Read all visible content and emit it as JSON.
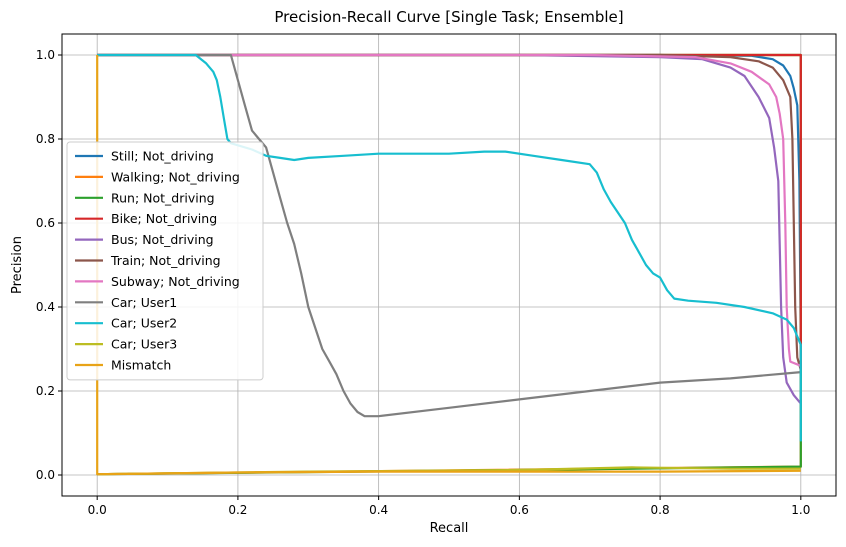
{
  "chart_data": {
    "type": "line",
    "title": "Precision-Recall Curve [Single Task; Ensemble]",
    "xlabel": "Recall",
    "ylabel": "Precision",
    "xlim": [
      -0.05,
      1.05
    ],
    "ylim": [
      -0.05,
      1.05
    ],
    "xticks": [
      "0.0",
      "0.2",
      "0.4",
      "0.6",
      "0.8",
      "1.0"
    ],
    "yticks": [
      "0.0",
      "0.2",
      "0.4",
      "0.6",
      "0.8",
      "1.0"
    ],
    "grid": true,
    "legend_position": "center-left",
    "series": [
      {
        "name": "Still; Not_driving",
        "color": "#1f77b4",
        "points": [
          [
            0,
            1
          ],
          [
            0.8,
            1
          ],
          [
            0.93,
            0.998
          ],
          [
            0.96,
            0.99
          ],
          [
            0.975,
            0.975
          ],
          [
            0.985,
            0.95
          ],
          [
            0.99,
            0.92
          ],
          [
            0.995,
            0.88
          ],
          [
            0.998,
            0.7
          ],
          [
            1.0,
            0.3
          ],
          [
            1.0,
            0.08
          ]
        ]
      },
      {
        "name": "Walking; Not_driving",
        "color": "#ff7f0e",
        "points": [
          [
            0,
            1
          ],
          [
            0.98,
            1
          ],
          [
            1.0,
            1
          ],
          [
            1.0,
            0.02
          ],
          [
            0,
            0.002
          ]
        ]
      },
      {
        "name": "Run; Not_driving",
        "color": "#2ca02c",
        "points": [
          [
            0,
            1
          ],
          [
            0.99,
            1
          ],
          [
            1.0,
            1
          ],
          [
            1.0,
            0.02
          ],
          [
            0.6,
            0.012
          ],
          [
            0,
            0.002
          ]
        ]
      },
      {
        "name": "Bike; Not_driving",
        "color": "#d62728",
        "points": [
          [
            0,
            1
          ],
          [
            0.995,
            1
          ],
          [
            1.0,
            1
          ],
          [
            1.0,
            0.25
          ]
        ]
      },
      {
        "name": "Bus; Not_driving",
        "color": "#9467bd",
        "points": [
          [
            0,
            1
          ],
          [
            0.6,
            1
          ],
          [
            0.8,
            0.995
          ],
          [
            0.86,
            0.99
          ],
          [
            0.9,
            0.97
          ],
          [
            0.92,
            0.95
          ],
          [
            0.94,
            0.9
          ],
          [
            0.955,
            0.85
          ],
          [
            0.962,
            0.78
          ],
          [
            0.968,
            0.7
          ],
          [
            0.97,
            0.55
          ],
          [
            0.972,
            0.4
          ],
          [
            0.975,
            0.28
          ],
          [
            0.98,
            0.22
          ],
          [
            0.99,
            0.19
          ],
          [
            1.0,
            0.17
          ]
        ]
      },
      {
        "name": "Train; Not_driving",
        "color": "#8c564b",
        "points": [
          [
            0,
            1
          ],
          [
            0.8,
            1
          ],
          [
            0.9,
            0.995
          ],
          [
            0.94,
            0.985
          ],
          [
            0.96,
            0.97
          ],
          [
            0.975,
            0.94
          ],
          [
            0.985,
            0.9
          ],
          [
            0.988,
            0.8
          ],
          [
            0.99,
            0.6
          ],
          [
            0.992,
            0.4
          ],
          [
            0.995,
            0.28
          ],
          [
            1.0,
            0.25
          ]
        ]
      },
      {
        "name": "Subway; Not_driving",
        "color": "#e377c2",
        "points": [
          [
            0,
            1
          ],
          [
            0.7,
            1
          ],
          [
            0.85,
            0.995
          ],
          [
            0.9,
            0.98
          ],
          [
            0.93,
            0.96
          ],
          [
            0.955,
            0.93
          ],
          [
            0.965,
            0.9
          ],
          [
            0.97,
            0.86
          ],
          [
            0.975,
            0.8
          ],
          [
            0.978,
            0.6
          ],
          [
            0.98,
            0.4
          ],
          [
            0.983,
            0.3
          ],
          [
            0.985,
            0.27
          ],
          [
            1.0,
            0.26
          ]
        ]
      },
      {
        "name": "Car; User1",
        "color": "#7f7f7f",
        "points": [
          [
            0,
            1
          ],
          [
            0.19,
            1
          ],
          [
            0.2,
            0.94
          ],
          [
            0.21,
            0.88
          ],
          [
            0.22,
            0.82
          ],
          [
            0.23,
            0.8
          ],
          [
            0.24,
            0.78
          ],
          [
            0.25,
            0.72
          ],
          [
            0.26,
            0.66
          ],
          [
            0.27,
            0.6
          ],
          [
            0.28,
            0.55
          ],
          [
            0.29,
            0.48
          ],
          [
            0.3,
            0.4
          ],
          [
            0.31,
            0.35
          ],
          [
            0.32,
            0.3
          ],
          [
            0.33,
            0.27
          ],
          [
            0.34,
            0.24
          ],
          [
            0.35,
            0.2
          ],
          [
            0.36,
            0.17
          ],
          [
            0.37,
            0.15
          ],
          [
            0.38,
            0.14
          ],
          [
            0.4,
            0.14
          ],
          [
            0.5,
            0.16
          ],
          [
            0.6,
            0.18
          ],
          [
            0.7,
            0.2
          ],
          [
            0.8,
            0.22
          ],
          [
            0.9,
            0.23
          ],
          [
            1.0,
            0.245
          ]
        ]
      },
      {
        "name": "Car; User2",
        "color": "#17becf",
        "points": [
          [
            0,
            1
          ],
          [
            0.14,
            1
          ],
          [
            0.155,
            0.98
          ],
          [
            0.165,
            0.96
          ],
          [
            0.17,
            0.94
          ],
          [
            0.175,
            0.9
          ],
          [
            0.18,
            0.85
          ],
          [
            0.185,
            0.8
          ],
          [
            0.19,
            0.79
          ],
          [
            0.2,
            0.785
          ],
          [
            0.22,
            0.775
          ],
          [
            0.24,
            0.76
          ],
          [
            0.26,
            0.755
          ],
          [
            0.28,
            0.75
          ],
          [
            0.3,
            0.755
          ],
          [
            0.35,
            0.76
          ],
          [
            0.4,
            0.765
          ],
          [
            0.45,
            0.765
          ],
          [
            0.5,
            0.765
          ],
          [
            0.55,
            0.77
          ],
          [
            0.58,
            0.77
          ],
          [
            0.62,
            0.76
          ],
          [
            0.66,
            0.75
          ],
          [
            0.7,
            0.74
          ],
          [
            0.71,
            0.72
          ],
          [
            0.72,
            0.68
          ],
          [
            0.73,
            0.65
          ],
          [
            0.75,
            0.6
          ],
          [
            0.76,
            0.56
          ],
          [
            0.77,
            0.53
          ],
          [
            0.78,
            0.5
          ],
          [
            0.79,
            0.48
          ],
          [
            0.8,
            0.47
          ],
          [
            0.81,
            0.44
          ],
          [
            0.82,
            0.42
          ],
          [
            0.84,
            0.415
          ],
          [
            0.88,
            0.41
          ],
          [
            0.92,
            0.4
          ],
          [
            0.96,
            0.385
          ],
          [
            0.98,
            0.37
          ],
          [
            0.99,
            0.35
          ],
          [
            0.995,
            0.33
          ],
          [
            1.0,
            0.31
          ],
          [
            1.0,
            0.08
          ]
        ]
      },
      {
        "name": "Car; User3",
        "color": "#bcbd22",
        "points": [
          [
            0,
            0.002
          ],
          [
            0.3,
            0.008
          ],
          [
            0.6,
            0.012
          ],
          [
            0.76,
            0.018
          ],
          [
            0.9,
            0.015
          ],
          [
            1.0,
            0.015
          ]
        ]
      },
      {
        "name": "Mismatch",
        "color": "#e8a317",
        "points": [
          [
            0,
            1
          ],
          [
            0,
            0.002
          ],
          [
            0.2,
            0.006
          ],
          [
            0.4,
            0.008
          ],
          [
            0.6,
            0.008
          ],
          [
            0.8,
            0.008
          ],
          [
            1.0,
            0.01
          ]
        ]
      }
    ]
  }
}
